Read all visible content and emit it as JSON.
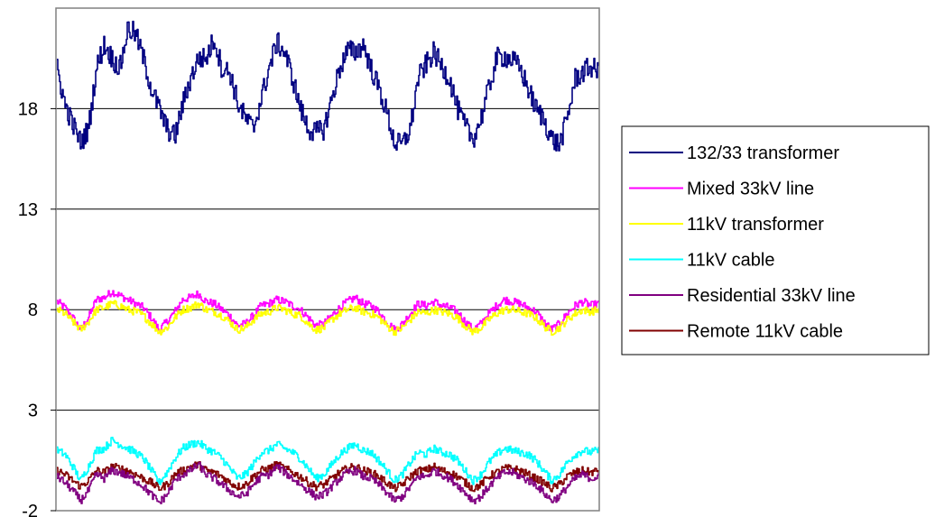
{
  "chart_data": {
    "type": "line",
    "title": "",
    "xlabel": "",
    "ylabel": "",
    "ylim": [
      -2,
      23
    ],
    "yticks": [
      -2,
      3,
      8,
      13,
      18
    ],
    "ytick_labels": [
      "-2",
      "3",
      "8",
      "13",
      "18"
    ],
    "grid": true,
    "legend_position": "right",
    "series": [
      {
        "name": "132/33 transformer",
        "color": "#000080",
        "values": [
          20,
          18.2,
          17.2,
          16.3,
          17,
          20,
          21.2,
          20.5,
          20,
          22,
          21.7,
          20.5,
          19,
          18,
          17,
          16.6,
          18.2,
          19.5,
          20.5,
          20.5,
          21.5,
          20,
          19.8,
          18.3,
          17.5,
          17,
          18.5,
          20,
          21.3,
          20.8,
          19.5,
          18,
          17,
          16.8,
          17,
          18.5,
          20,
          20.9,
          20.8,
          21.2,
          20,
          19,
          17.8,
          16.3,
          16.2,
          17,
          19.5,
          20.2,
          20.8,
          20.1,
          19.5,
          18,
          17.1,
          16.5,
          17.5,
          19,
          20.5,
          20.6,
          20.4,
          20,
          19,
          18,
          17.5,
          16.5,
          16.2,
          17.5,
          19.5,
          19.8,
          20.1,
          19.8
        ]
      },
      {
        "name": "Mixed 33kV line",
        "color": "#ff00ff",
        "values": [
          8.4,
          8.1,
          7.6,
          7,
          7.6,
          8.5,
          8.6,
          8.9,
          8.7,
          8.5,
          8.3,
          8.1,
          7.6,
          7,
          7.4,
          7.9,
          8.5,
          8.6,
          8.8,
          8.4,
          8.3,
          8,
          7.7,
          7.2,
          7.3,
          7.7,
          8.2,
          8.3,
          8.5,
          8.4,
          8.2,
          8,
          7.6,
          7.2,
          7.3,
          7.7,
          8.1,
          8.4,
          8.6,
          8.3,
          8.2,
          7.9,
          7.4,
          7,
          7.3,
          7.8,
          8.3,
          8.2,
          8.4,
          8.2,
          8.1,
          7.9,
          7.4,
          7,
          7.3,
          7.8,
          8.2,
          8.5,
          8.4,
          8.3,
          8.1,
          7.9,
          7.4,
          7,
          7.3,
          7.8,
          8.2,
          8.4,
          8.2,
          8.3
        ]
      },
      {
        "name": "11kV transformer",
        "color": "#ffff00",
        "values": [
          8,
          7.8,
          7.4,
          7,
          7.4,
          8,
          8.1,
          8.3,
          8.2,
          8,
          7.9,
          7.7,
          7.3,
          6.9,
          7.1,
          7.6,
          8,
          8.1,
          8.3,
          8,
          7.9,
          7.7,
          7.4,
          7,
          7.1,
          7.5,
          7.8,
          7.9,
          8.1,
          8,
          7.8,
          7.7,
          7.3,
          7,
          7.1,
          7.5,
          7.8,
          8,
          8.1,
          7.9,
          7.8,
          7.6,
          7.2,
          6.9,
          7.1,
          7.5,
          7.9,
          7.8,
          8,
          7.9,
          7.8,
          7.6,
          7.2,
          6.9,
          7.1,
          7.5,
          7.8,
          8,
          8,
          7.9,
          7.8,
          7.6,
          7.2,
          6.9,
          7.1,
          7.5,
          7.8,
          8,
          7.9,
          8
        ]
      },
      {
        "name": "11kV cable",
        "color": "#00ffff",
        "values": [
          1,
          0.8,
          0.2,
          -0.5,
          0.2,
          1,
          1.1,
          1.5,
          1.3,
          1.1,
          0.9,
          0.6,
          0,
          -0.6,
          -0.1,
          0.6,
          1.1,
          1.3,
          1.4,
          1.1,
          0.9,
          0.6,
          0.1,
          -0.4,
          -0.2,
          0.3,
          0.9,
          1,
          1.3,
          1.1,
          0.9,
          0.6,
          0.1,
          -0.4,
          -0.2,
          0.3,
          0.8,
          1.1,
          1.3,
          1,
          0.9,
          0.5,
          0,
          -0.5,
          -0.2,
          0.4,
          0.9,
          0.8,
          1.1,
          0.9,
          0.8,
          0.5,
          0,
          -0.5,
          -0.2,
          0.4,
          0.8,
          1.1,
          1,
          0.9,
          0.8,
          0.5,
          0,
          -0.5,
          -0.2,
          0.4,
          0.8,
          1,
          0.9,
          1
        ]
      },
      {
        "name": "Residential 33kV line",
        "color": "#800080",
        "values": [
          -0.3,
          -0.6,
          -1,
          -1.5,
          -1,
          -0.2,
          -0.4,
          0,
          -0.1,
          -0.3,
          -0.5,
          -0.8,
          -1.2,
          -1.6,
          -1.2,
          -0.5,
          -0.2,
          0,
          0.3,
          -0.2,
          -0.4,
          -0.7,
          -1,
          -1.3,
          -1.2,
          -0.7,
          -0.3,
          -0.2,
          0.2,
          -0.1,
          -0.4,
          -0.7,
          -1,
          -1.3,
          -1.2,
          -0.8,
          -0.4,
          -0.1,
          0,
          -0.3,
          -0.4,
          -0.7,
          -1.1,
          -1.5,
          -1.3,
          -0.8,
          -0.3,
          -0.3,
          0,
          -0.2,
          -0.4,
          -0.7,
          -1.1,
          -1.5,
          -1.3,
          -0.8,
          -0.4,
          -0.1,
          -0.1,
          -0.3,
          -0.5,
          -0.7,
          -1.1,
          -1.5,
          -1.3,
          -0.8,
          -0.4,
          -0.2,
          -0.4,
          -0.3
        ]
      },
      {
        "name": "Remote 11kV cable",
        "color": "#800000",
        "values": [
          0,
          -0.2,
          -0.5,
          -0.8,
          -0.5,
          0,
          -0.1,
          0.2,
          0.1,
          0,
          -0.2,
          -0.4,
          -0.6,
          -0.9,
          -0.7,
          -0.2,
          0,
          0.2,
          0.3,
          0,
          -0.1,
          -0.3,
          -0.6,
          -0.8,
          -0.7,
          -0.3,
          0,
          0.1,
          0.3,
          0.1,
          -0.1,
          -0.3,
          -0.6,
          -0.8,
          -0.7,
          -0.4,
          -0.1,
          0.1,
          0.2,
          0,
          -0.1,
          -0.3,
          -0.6,
          -0.9,
          -0.7,
          -0.3,
          0,
          0,
          0.2,
          0,
          -0.1,
          -0.3,
          -0.6,
          -0.9,
          -0.7,
          -0.3,
          -0.1,
          0.1,
          0.1,
          0,
          -0.2,
          -0.4,
          -0.6,
          -0.9,
          -0.7,
          -0.3,
          -0.1,
          0,
          -0.1,
          0
        ]
      }
    ]
  }
}
